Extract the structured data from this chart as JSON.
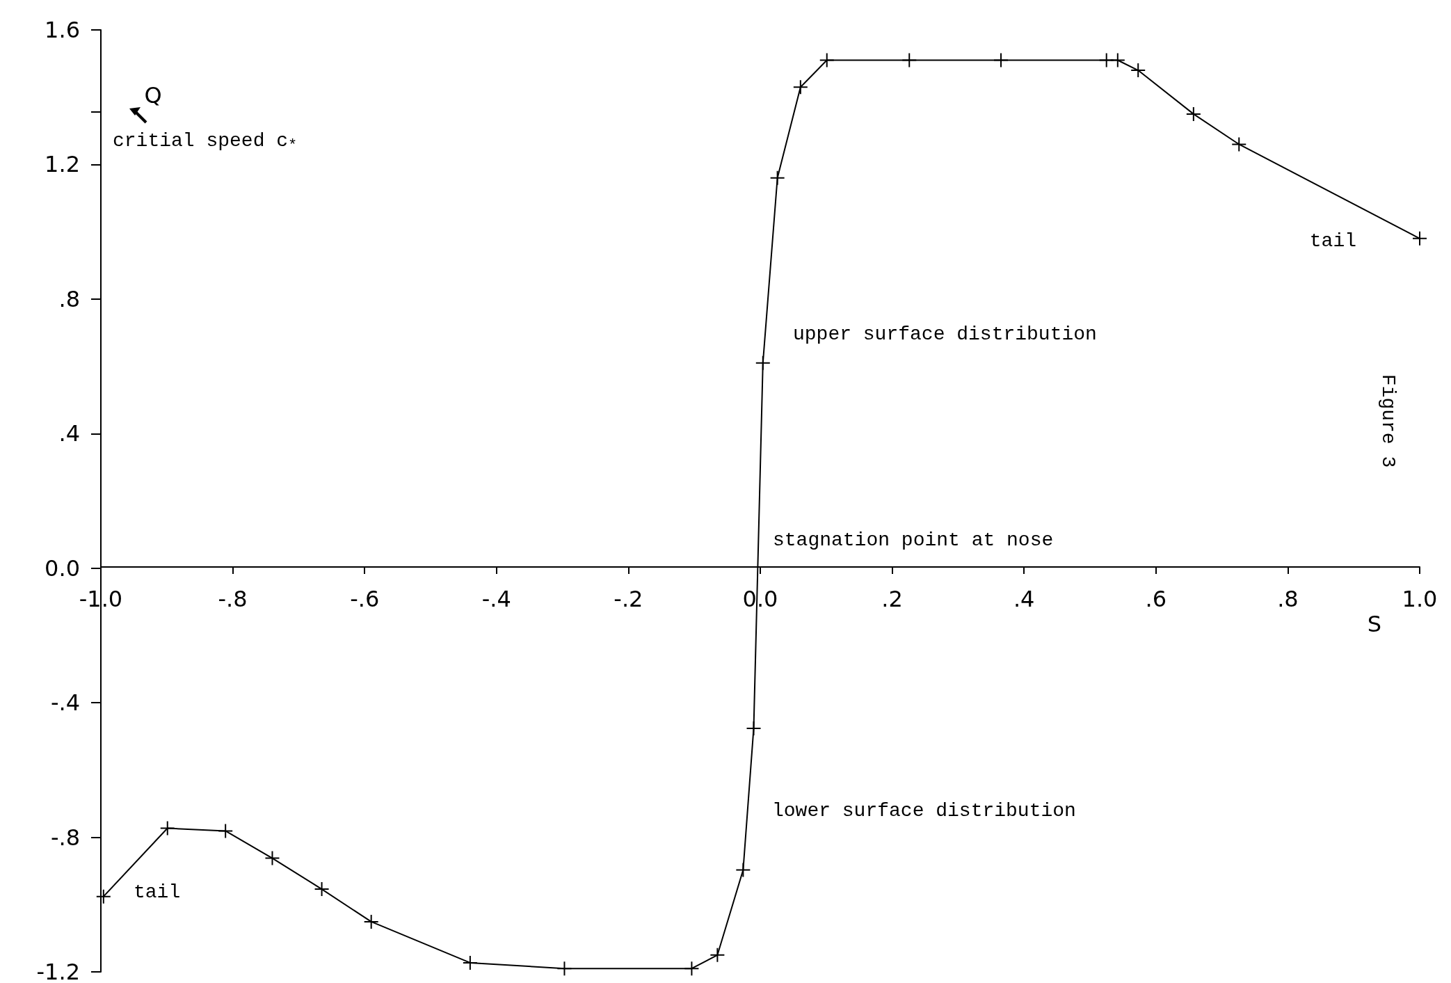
{
  "chart_data": {
    "type": "line",
    "xlabel": "S",
    "ylabel": "Q",
    "x": [
      -0.996,
      -0.899,
      -0.811,
      -0.74,
      -0.665,
      -0.59,
      -0.44,
      -0.297,
      -0.104,
      -0.065,
      -0.026,
      -0.01,
      0.004,
      0.026,
      0.061,
      0.101,
      0.226,
      0.365,
      0.525,
      0.542,
      0.573,
      0.657,
      0.726,
      1.0
    ],
    "series": [
      {
        "color": "#000000",
        "values": [
          -0.976,
          -0.773,
          -0.781,
          -0.862,
          -0.954,
          -1.051,
          -1.173,
          -1.19,
          -1.19,
          -1.15,
          -0.897,
          -0.476,
          0.61,
          1.16,
          1.43,
          1.51,
          1.51,
          1.51,
          1.51,
          1.51,
          1.48,
          1.35,
          1.26,
          0.98
        ]
      }
    ],
    "xlim": [
      -1.0,
      1.0
    ],
    "ylim": [
      -1.2,
      1.6
    ],
    "xticks": [
      {
        "value": -1.0,
        "label": "-1.0"
      },
      {
        "value": -0.8,
        "label": "-.8"
      },
      {
        "value": -0.6,
        "label": "-.6"
      },
      {
        "value": -0.4,
        "label": "-.4"
      },
      {
        "value": -0.2,
        "label": "-.2"
      },
      {
        "value": 0,
        "label": "0.0"
      },
      {
        "value": 0.2,
        "label": ".2"
      },
      {
        "value": 0.4,
        "label": ".4"
      },
      {
        "value": 0.6,
        "label": ".6"
      },
      {
        "value": 0.8,
        "label": ".8"
      },
      {
        "value": 1.0,
        "label": "1.0"
      }
    ],
    "yticks": [
      {
        "value": -1.2,
        "label": "-1.2"
      },
      {
        "value": -0.8,
        "label": "-.8"
      },
      {
        "value": -0.4,
        "label": "-.4"
      },
      {
        "value": 0,
        "label": "0.0"
      },
      {
        "value": 0.4,
        "label": ".4"
      },
      {
        "value": 0.8,
        "label": ".8"
      },
      {
        "value": 1.2,
        "label": "1.2"
      },
      {
        "value": 1.356,
        "label": null
      },
      {
        "value": 1.6,
        "label": "1.6"
      }
    ],
    "annotations": [
      "critial speed c$_{*}$",
      "upper surface distribution",
      "lower surface distribution",
      {
        "text": "stagnation point at nose",
        "x": 0.0,
        "y": 0.0
      },
      "tail",
      "tail",
      "Figure 3"
    ],
    "grid": false,
    "marker": "cross",
    "line_style": "solid"
  }
}
